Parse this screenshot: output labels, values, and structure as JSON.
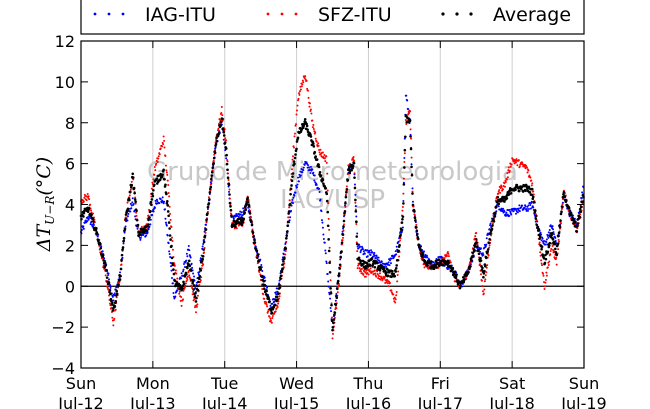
{
  "chart_data": {
    "type": "scatter",
    "title": "",
    "xlabel": "",
    "ylabel": "ΔT",
    "ylabel_subscript": "U−R",
    "ylabel_unit": "(°C)",
    "xlim": [
      0,
      7
    ],
    "ylim": [
      -4,
      12
    ],
    "yticks": [
      -4,
      -2,
      0,
      2,
      4,
      6,
      8,
      10,
      12
    ],
    "xticks": [
      {
        "x": 0,
        "day": "Sun",
        "date": "Jul-12"
      },
      {
        "x": 1,
        "day": "Mon",
        "date": "Jul-13"
      },
      {
        "x": 2,
        "day": "Tue",
        "date": "Jul-14"
      },
      {
        "x": 3,
        "day": "Wed",
        "date": "Jul-15"
      },
      {
        "x": 4,
        "day": "Thu",
        "date": "Jul-16"
      },
      {
        "x": 5,
        "day": "Fri",
        "date": "Jul-17"
      },
      {
        "x": 6,
        "day": "Sat",
        "date": "Jul-18"
      },
      {
        "x": 7,
        "day": "Sun",
        "date": "Jul-19"
      }
    ],
    "grid": "vertical",
    "zero_line": true,
    "legend_position": "top (above plot)",
    "watermark": [
      "Grupo de Micrometeorologia",
      "IAG/USP"
    ],
    "series": [
      {
        "name": "IAG-ITU",
        "color": "#0000ff",
        "points": [
          [
            0.0,
            2.6
          ],
          [
            0.1,
            3.4
          ],
          [
            0.22,
            2.6
          ],
          [
            0.35,
            1.0
          ],
          [
            0.45,
            -0.6
          ],
          [
            0.55,
            0.6
          ],
          [
            0.62,
            3.0
          ],
          [
            0.72,
            4.2
          ],
          [
            0.8,
            2.4
          ],
          [
            0.92,
            2.6
          ],
          [
            1.05,
            4.2
          ],
          [
            1.15,
            4.2
          ],
          [
            1.22,
            2.0
          ],
          [
            1.3,
            -0.6
          ],
          [
            1.4,
            0.5
          ],
          [
            1.5,
            1.8
          ],
          [
            1.6,
            -0.2
          ],
          [
            1.7,
            2.0
          ],
          [
            1.78,
            4.2
          ],
          [
            1.88,
            7.0
          ],
          [
            1.96,
            8.0
          ],
          [
            2.02,
            6.2
          ],
          [
            2.1,
            3.2
          ],
          [
            2.25,
            3.6
          ],
          [
            2.32,
            4.0
          ],
          [
            2.42,
            2.2
          ],
          [
            2.55,
            0.4
          ],
          [
            2.65,
            -1.0
          ],
          [
            2.75,
            0.0
          ],
          [
            2.85,
            2.2
          ],
          [
            2.95,
            4.2
          ],
          [
            3.02,
            5.2
          ],
          [
            3.12,
            6.0
          ],
          [
            3.22,
            5.6
          ],
          [
            3.32,
            4.6
          ],
          [
            3.42,
            1.0
          ],
          [
            3.5,
            -2.0
          ],
          [
            3.6,
            1.0
          ],
          [
            3.72,
            5.6
          ],
          [
            3.8,
            6.0
          ],
          [
            3.85,
            2.0
          ],
          [
            3.95,
            1.6
          ],
          [
            4.05,
            1.6
          ],
          [
            4.2,
            1.0
          ],
          [
            4.3,
            1.2
          ],
          [
            4.38,
            1.6
          ],
          [
            4.48,
            3.0
          ],
          [
            4.52,
            9.4
          ],
          [
            4.58,
            8.0
          ],
          [
            4.62,
            4.0
          ],
          [
            4.7,
            2.0
          ],
          [
            4.78,
            1.6
          ],
          [
            4.9,
            1.0
          ],
          [
            5.0,
            1.4
          ],
          [
            5.1,
            1.0
          ],
          [
            5.2,
            0.8
          ],
          [
            5.28,
            0.0
          ],
          [
            5.4,
            0.8
          ],
          [
            5.5,
            2.0
          ],
          [
            5.6,
            1.6
          ],
          [
            5.7,
            3.0
          ],
          [
            5.8,
            4.0
          ],
          [
            5.9,
            3.6
          ],
          [
            6.0,
            3.6
          ],
          [
            6.1,
            3.8
          ],
          [
            6.2,
            3.8
          ],
          [
            6.28,
            4.0
          ],
          [
            6.35,
            3.0
          ],
          [
            6.45,
            2.0
          ],
          [
            6.55,
            3.0
          ],
          [
            6.62,
            2.0
          ],
          [
            6.72,
            4.4
          ],
          [
            6.8,
            3.6
          ],
          [
            6.9,
            3.0
          ],
          [
            7.0,
            5.0
          ]
        ]
      },
      {
        "name": "SFZ-ITU",
        "color": "#ff0000",
        "points": [
          [
            0.0,
            4.2
          ],
          [
            0.1,
            4.4
          ],
          [
            0.22,
            2.6
          ],
          [
            0.35,
            0.4
          ],
          [
            0.45,
            -1.8
          ],
          [
            0.55,
            0.6
          ],
          [
            0.62,
            3.4
          ],
          [
            0.72,
            5.4
          ],
          [
            0.8,
            2.6
          ],
          [
            0.92,
            3.0
          ],
          [
            1.02,
            5.6
          ],
          [
            1.15,
            7.2
          ],
          [
            1.22,
            4.6
          ],
          [
            1.3,
            1.0
          ],
          [
            1.4,
            -0.8
          ],
          [
            1.5,
            0.8
          ],
          [
            1.6,
            -1.2
          ],
          [
            1.7,
            1.2
          ],
          [
            1.78,
            4.2
          ],
          [
            1.88,
            7.2
          ],
          [
            1.96,
            8.6
          ],
          [
            2.02,
            7.0
          ],
          [
            2.1,
            3.0
          ],
          [
            2.25,
            3.0
          ],
          [
            2.32,
            4.4
          ],
          [
            2.42,
            2.0
          ],
          [
            2.55,
            -0.6
          ],
          [
            2.65,
            -1.8
          ],
          [
            2.75,
            -0.8
          ],
          [
            2.85,
            1.8
          ],
          [
            2.95,
            6.4
          ],
          [
            3.02,
            9.2
          ],
          [
            3.12,
            10.4
          ],
          [
            3.22,
            8.0
          ],
          [
            3.32,
            6.6
          ],
          [
            3.42,
            6.2
          ],
          [
            3.5,
            -2.4
          ],
          [
            3.6,
            0.4
          ],
          [
            3.72,
            5.8
          ],
          [
            3.8,
            6.2
          ],
          [
            3.85,
            1.0
          ],
          [
            3.95,
            0.6
          ],
          [
            4.05,
            0.8
          ],
          [
            4.2,
            0.4
          ],
          [
            4.3,
            0.0
          ],
          [
            4.38,
            -0.8
          ],
          [
            4.48,
            4.0
          ],
          [
            4.52,
            8.0
          ],
          [
            4.58,
            8.6
          ],
          [
            4.62,
            4.0
          ],
          [
            4.7,
            2.0
          ],
          [
            4.78,
            1.0
          ],
          [
            4.9,
            1.0
          ],
          [
            5.0,
            1.0
          ],
          [
            5.1,
            1.6
          ],
          [
            5.2,
            0.4
          ],
          [
            5.28,
            0.0
          ],
          [
            5.4,
            0.8
          ],
          [
            5.5,
            2.6
          ],
          [
            5.6,
            -0.4
          ],
          [
            5.7,
            2.4
          ],
          [
            5.8,
            4.6
          ],
          [
            5.9,
            5.0
          ],
          [
            6.0,
            6.2
          ],
          [
            6.1,
            6.0
          ],
          [
            6.2,
            5.8
          ],
          [
            6.28,
            5.0
          ],
          [
            6.35,
            3.0
          ],
          [
            6.45,
            0.0
          ],
          [
            6.55,
            2.0
          ],
          [
            6.62,
            1.2
          ],
          [
            6.72,
            4.6
          ],
          [
            6.8,
            3.6
          ],
          [
            6.9,
            2.8
          ],
          [
            7.0,
            4.2
          ]
        ]
      },
      {
        "name": "Average",
        "color": "#000000",
        "points": [
          [
            0.0,
            3.4
          ],
          [
            0.1,
            3.8
          ],
          [
            0.22,
            2.6
          ],
          [
            0.35,
            0.8
          ],
          [
            0.45,
            -1.2
          ],
          [
            0.55,
            0.6
          ],
          [
            0.62,
            3.2
          ],
          [
            0.72,
            5.4
          ],
          [
            0.8,
            2.6
          ],
          [
            0.92,
            2.8
          ],
          [
            1.02,
            5.0
          ],
          [
            1.15,
            5.6
          ],
          [
            1.22,
            3.4
          ],
          [
            1.3,
            0.2
          ],
          [
            1.4,
            -0.2
          ],
          [
            1.5,
            1.2
          ],
          [
            1.6,
            -0.6
          ],
          [
            1.7,
            1.6
          ],
          [
            1.78,
            4.2
          ],
          [
            1.88,
            7.0
          ],
          [
            1.96,
            8.2
          ],
          [
            2.02,
            6.6
          ],
          [
            2.1,
            3.0
          ],
          [
            2.25,
            3.2
          ],
          [
            2.32,
            4.2
          ],
          [
            2.42,
            2.0
          ],
          [
            2.55,
            0.0
          ],
          [
            2.65,
            -1.2
          ],
          [
            2.75,
            -0.4
          ],
          [
            2.85,
            2.0
          ],
          [
            2.95,
            5.6
          ],
          [
            3.02,
            7.4
          ],
          [
            3.12,
            8.0
          ],
          [
            3.22,
            7.0
          ],
          [
            3.32,
            5.6
          ],
          [
            3.42,
            4.6
          ],
          [
            3.5,
            -2.2
          ],
          [
            3.6,
            0.8
          ],
          [
            3.72,
            5.6
          ],
          [
            3.8,
            6.0
          ],
          [
            3.85,
            1.4
          ],
          [
            3.95,
            1.0
          ],
          [
            4.05,
            1.2
          ],
          [
            4.2,
            0.8
          ],
          [
            4.3,
            0.6
          ],
          [
            4.38,
            0.6
          ],
          [
            4.48,
            3.4
          ],
          [
            4.52,
            8.2
          ],
          [
            4.58,
            8.0
          ],
          [
            4.62,
            4.0
          ],
          [
            4.7,
            2.0
          ],
          [
            4.78,
            1.2
          ],
          [
            4.9,
            1.0
          ],
          [
            5.0,
            1.2
          ],
          [
            5.1,
            1.2
          ],
          [
            5.2,
            0.6
          ],
          [
            5.28,
            0.0
          ],
          [
            5.4,
            0.8
          ],
          [
            5.5,
            2.2
          ],
          [
            5.6,
            0.6
          ],
          [
            5.7,
            2.6
          ],
          [
            5.8,
            4.2
          ],
          [
            5.9,
            4.2
          ],
          [
            6.0,
            4.8
          ],
          [
            6.1,
            4.8
          ],
          [
            6.2,
            4.8
          ],
          [
            6.28,
            4.6
          ],
          [
            6.35,
            3.0
          ],
          [
            6.45,
            1.2
          ],
          [
            6.55,
            2.6
          ],
          [
            6.62,
            1.6
          ],
          [
            6.72,
            4.6
          ],
          [
            6.8,
            3.6
          ],
          [
            6.9,
            2.8
          ],
          [
            7.0,
            4.6
          ]
        ]
      }
    ]
  }
}
